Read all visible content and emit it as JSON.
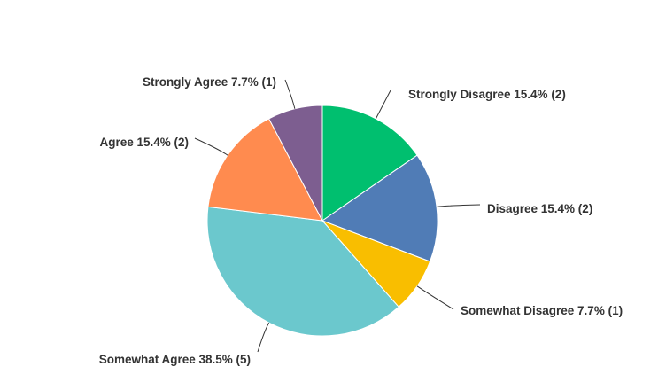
{
  "chart_data": {
    "type": "pie",
    "title": "",
    "start": "top",
    "direction": "clockwise",
    "slices": [
      {
        "label": "Strongly Disagree",
        "percent": 15.4,
        "count": 2,
        "color": "#00bf6f",
        "text": "Strongly Disagree 15.4% (2)"
      },
      {
        "label": "Disagree",
        "percent": 15.4,
        "count": 2,
        "color": "#507cb6",
        "text": "Disagree 15.4% (2)"
      },
      {
        "label": "Somewhat Disagree",
        "percent": 7.7,
        "count": 1,
        "color": "#f9be00",
        "text": "Somewhat Disagree 7.7% (1)"
      },
      {
        "label": "Somewhat Agree",
        "percent": 38.5,
        "count": 5,
        "color": "#6bc8cd",
        "text": "Somewhat Agree 38.5% (5)"
      },
      {
        "label": "Agree",
        "percent": 15.4,
        "count": 2,
        "color": "#ff8b4f",
        "text": "Agree 15.4% (2)"
      },
      {
        "label": "Strongly Agree",
        "percent": 7.7,
        "count": 1,
        "color": "#7d5e90",
        "text": "Strongly Agree 7.7% (1)"
      }
    ]
  }
}
